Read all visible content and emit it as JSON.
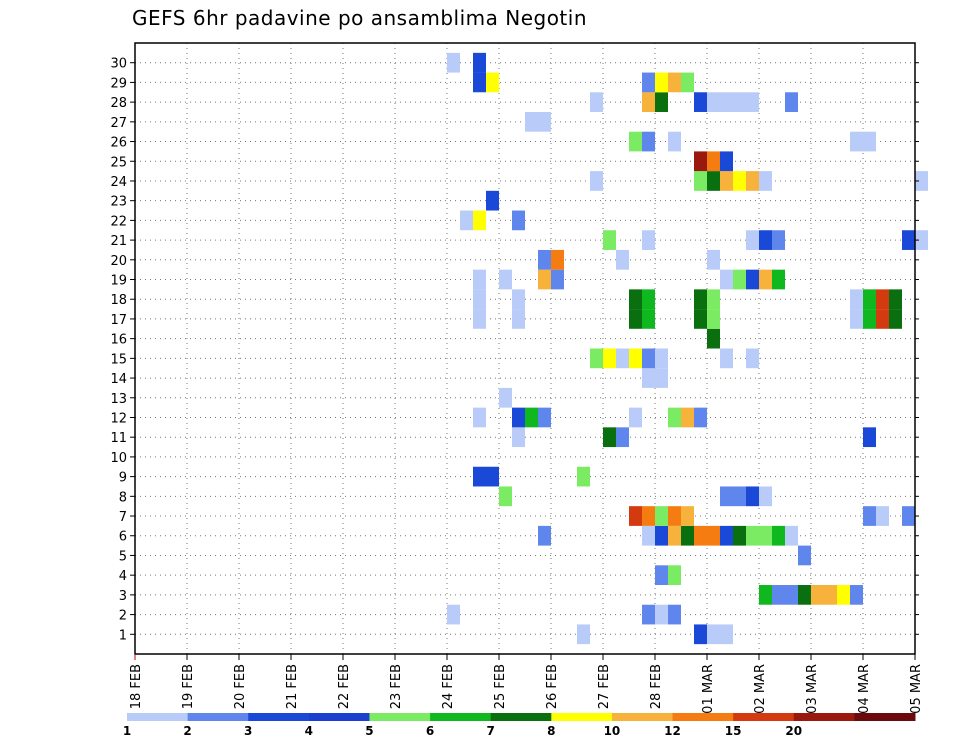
{
  "chart_data": {
    "type": "heatmap",
    "title": "GEFS 6hr padavine po ansamblima Negotin",
    "x_categories": [
      "18 FEB",
      "19 FEB",
      "20 FEB",
      "21 FEB",
      "22 FEB",
      "23 FEB",
      "24 FEB",
      "25 FEB",
      "26 FEB",
      "27 FEB",
      "28 FEB",
      "01 MAR",
      "02 MAR",
      "03 MAR",
      "04 MAR",
      "05 MAR"
    ],
    "x_range": [
      0,
      15
    ],
    "x_step": 0.25,
    "y_categories": [
      "1",
      "2",
      "3",
      "4",
      "5",
      "6",
      "7",
      "8",
      "9",
      "10",
      "11",
      "12",
      "13",
      "14",
      "15",
      "16",
      "17",
      "18",
      "19",
      "20",
      "21",
      "22",
      "23",
      "24",
      "25",
      "26",
      "27",
      "28",
      "29",
      "30"
    ],
    "grid": "dotted",
    "legend": {
      "position": "bottom",
      "levels": [
        "1",
        "2",
        "3",
        "4",
        "5",
        "6",
        "7",
        "8",
        "10",
        "12",
        "15",
        "20"
      ],
      "colors": [
        "#b9cbf9",
        "#5f86ec",
        "#1a49d8",
        "#1b3fcf",
        "#7beb63",
        "#10b820",
        "#0a6f0f",
        "#ffff00",
        "#f6b23a",
        "#f57c10",
        "#d43a10",
        "#99190c",
        "#6b0a0a"
      ]
    },
    "cells": [
      {
        "member": 1,
        "x": 10.75,
        "c": 3
      },
      {
        "member": 1,
        "x": 11.0,
        "c": 1
      },
      {
        "member": 1,
        "x": 11.25,
        "c": 1
      },
      {
        "member": 1,
        "x": 8.5,
        "c": 1
      },
      {
        "member": 2,
        "x": 6.0,
        "c": 1
      },
      {
        "member": 2,
        "x": 9.75,
        "c": 2
      },
      {
        "member": 2,
        "x": 10.0,
        "c": 1
      },
      {
        "member": 2,
        "x": 10.25,
        "c": 2
      },
      {
        "member": 3,
        "x": 12.0,
        "c": 6
      },
      {
        "member": 3,
        "x": 12.25,
        "c": 2
      },
      {
        "member": 3,
        "x": 12.5,
        "c": 2
      },
      {
        "member": 3,
        "x": 12.75,
        "c": 7
      },
      {
        "member": 3,
        "x": 13.0,
        "c": 9
      },
      {
        "member": 3,
        "x": 13.25,
        "c": 9
      },
      {
        "member": 3,
        "x": 13.5,
        "c": 8
      },
      {
        "member": 3,
        "x": 13.75,
        "c": 2
      },
      {
        "member": 4,
        "x": 10.0,
        "c": 2
      },
      {
        "member": 4,
        "x": 10.25,
        "c": 5
      },
      {
        "member": 5,
        "x": 12.75,
        "c": 2
      },
      {
        "member": 6,
        "x": 7.75,
        "c": 2
      },
      {
        "member": 6,
        "x": 9.75,
        "c": 1
      },
      {
        "member": 6,
        "x": 10.0,
        "c": 3
      },
      {
        "member": 6,
        "x": 10.25,
        "c": 9
      },
      {
        "member": 6,
        "x": 10.5,
        "c": 7
      },
      {
        "member": 6,
        "x": 10.75,
        "c": 10
      },
      {
        "member": 6,
        "x": 11.0,
        "c": 10
      },
      {
        "member": 6,
        "x": 11.25,
        "c": 3
      },
      {
        "member": 6,
        "x": 11.5,
        "c": 7
      },
      {
        "member": 6,
        "x": 11.75,
        "c": 5
      },
      {
        "member": 6,
        "x": 12.0,
        "c": 5
      },
      {
        "member": 6,
        "x": 12.25,
        "c": 6
      },
      {
        "member": 6,
        "x": 12.5,
        "c": 1
      },
      {
        "member": 7,
        "x": 9.5,
        "c": 11
      },
      {
        "member": 7,
        "x": 9.75,
        "c": 10
      },
      {
        "member": 7,
        "x": 10.0,
        "c": 5
      },
      {
        "member": 7,
        "x": 10.25,
        "c": 10
      },
      {
        "member": 7,
        "x": 10.5,
        "c": 9
      },
      {
        "member": 7,
        "x": 14.0,
        "c": 2
      },
      {
        "member": 7,
        "x": 14.25,
        "c": 1
      },
      {
        "member": 7,
        "x": 14.75,
        "c": 2
      },
      {
        "member": 8,
        "x": 7.0,
        "c": 5
      },
      {
        "member": 8,
        "x": 11.25,
        "c": 2
      },
      {
        "member": 8,
        "x": 11.5,
        "c": 2
      },
      {
        "member": 8,
        "x": 11.75,
        "c": 3
      },
      {
        "member": 8,
        "x": 12.0,
        "c": 1
      },
      {
        "member": 9,
        "x": 6.5,
        "c": 3
      },
      {
        "member": 9,
        "x": 6.75,
        "c": 3
      },
      {
        "member": 9,
        "x": 8.5,
        "c": 5
      },
      {
        "member": 11,
        "x": 7.25,
        "c": 1
      },
      {
        "member": 11,
        "x": 9.0,
        "c": 7
      },
      {
        "member": 11,
        "x": 9.25,
        "c": 2
      },
      {
        "member": 11,
        "x": 14.0,
        "c": 3
      },
      {
        "member": 12,
        "x": 6.5,
        "c": 1
      },
      {
        "member": 12,
        "x": 7.25,
        "c": 3
      },
      {
        "member": 12,
        "x": 7.5,
        "c": 6
      },
      {
        "member": 12,
        "x": 7.75,
        "c": 2
      },
      {
        "member": 12,
        "x": 9.5,
        "c": 1
      },
      {
        "member": 12,
        "x": 10.25,
        "c": 5
      },
      {
        "member": 12,
        "x": 10.5,
        "c": 9
      },
      {
        "member": 12,
        "x": 10.75,
        "c": 2
      },
      {
        "member": 13,
        "x": 7.0,
        "c": 1
      },
      {
        "member": 14,
        "x": 9.75,
        "c": 1
      },
      {
        "member": 14,
        "x": 10.0,
        "c": 1
      },
      {
        "member": 15,
        "x": 8.75,
        "c": 5
      },
      {
        "member": 15,
        "x": 9.0,
        "c": 8
      },
      {
        "member": 15,
        "x": 9.25,
        "c": 1
      },
      {
        "member": 15,
        "x": 9.5,
        "c": 8
      },
      {
        "member": 15,
        "x": 9.75,
        "c": 2
      },
      {
        "member": 15,
        "x": 10.0,
        "c": 1
      },
      {
        "member": 15,
        "x": 11.25,
        "c": 1
      },
      {
        "member": 15,
        "x": 11.75,
        "c": 1
      },
      {
        "member": 16,
        "x": 11.0,
        "c": 7
      },
      {
        "member": 17,
        "x": 6.5,
        "c": 1
      },
      {
        "member": 17,
        "x": 7.25,
        "c": 1
      },
      {
        "member": 17,
        "x": 9.5,
        "c": 7
      },
      {
        "member": 17,
        "x": 9.75,
        "c": 6
      },
      {
        "member": 17,
        "x": 10.75,
        "c": 7
      },
      {
        "member": 17,
        "x": 11.0,
        "c": 5
      },
      {
        "member": 17,
        "x": 13.75,
        "c": 1
      },
      {
        "member": 17,
        "x": 14.0,
        "c": 6
      },
      {
        "member": 17,
        "x": 14.25,
        "c": 11
      },
      {
        "member": 17,
        "x": 14.5,
        "c": 7
      },
      {
        "member": 18,
        "x": 6.5,
        "c": 1
      },
      {
        "member": 18,
        "x": 7.25,
        "c": 1
      },
      {
        "member": 18,
        "x": 9.5,
        "c": 7
      },
      {
        "member": 18,
        "x": 9.75,
        "c": 6
      },
      {
        "member": 18,
        "x": 10.75,
        "c": 7
      },
      {
        "member": 18,
        "x": 11.0,
        "c": 5
      },
      {
        "member": 18,
        "x": 13.75,
        "c": 1
      },
      {
        "member": 18,
        "x": 14.0,
        "c": 6
      },
      {
        "member": 18,
        "x": 14.25,
        "c": 11
      },
      {
        "member": 18,
        "x": 14.5,
        "c": 7
      },
      {
        "member": 19,
        "x": 6.5,
        "c": 1
      },
      {
        "member": 19,
        "x": 7.0,
        "c": 1
      },
      {
        "member": 19,
        "x": 7.75,
        "c": 9
      },
      {
        "member": 19,
        "x": 8.0,
        "c": 2
      },
      {
        "member": 19,
        "x": 11.25,
        "c": 1
      },
      {
        "member": 19,
        "x": 11.5,
        "c": 5
      },
      {
        "member": 19,
        "x": 11.75,
        "c": 3
      },
      {
        "member": 19,
        "x": 12.0,
        "c": 9
      },
      {
        "member": 19,
        "x": 12.25,
        "c": 6
      },
      {
        "member": 20,
        "x": 7.75,
        "c": 2
      },
      {
        "member": 20,
        "x": 8.0,
        "c": 10
      },
      {
        "member": 20,
        "x": 9.25,
        "c": 1
      },
      {
        "member": 20,
        "x": 11.0,
        "c": 1
      },
      {
        "member": 21,
        "x": 9.0,
        "c": 5
      },
      {
        "member": 21,
        "x": 9.75,
        "c": 1
      },
      {
        "member": 21,
        "x": 11.75,
        "c": 1
      },
      {
        "member": 21,
        "x": 12.0,
        "c": 3
      },
      {
        "member": 21,
        "x": 12.25,
        "c": 2
      },
      {
        "member": 21,
        "x": 14.75,
        "c": 3
      },
      {
        "member": 21,
        "x": 15.0,
        "c": 1
      },
      {
        "member": 22,
        "x": 6.25,
        "c": 1
      },
      {
        "member": 22,
        "x": 6.5,
        "c": 8
      },
      {
        "member": 22,
        "x": 7.25,
        "c": 2
      },
      {
        "member": 23,
        "x": 6.75,
        "c": 3
      },
      {
        "member": 24,
        "x": 8.75,
        "c": 1
      },
      {
        "member": 24,
        "x": 10.75,
        "c": 5
      },
      {
        "member": 24,
        "x": 11.0,
        "c": 7
      },
      {
        "member": 24,
        "x": 11.25,
        "c": 9
      },
      {
        "member": 24,
        "x": 11.5,
        "c": 8
      },
      {
        "member": 24,
        "x": 11.75,
        "c": 9
      },
      {
        "member": 24,
        "x": 12.0,
        "c": 1
      },
      {
        "member": 24,
        "x": 15.0,
        "c": 1
      },
      {
        "member": 25,
        "x": 10.75,
        "c": 12
      },
      {
        "member": 25,
        "x": 11.0,
        "c": 10
      },
      {
        "member": 25,
        "x": 11.25,
        "c": 3
      },
      {
        "member": 26,
        "x": 9.5,
        "c": 5
      },
      {
        "member": 26,
        "x": 9.75,
        "c": 2
      },
      {
        "member": 26,
        "x": 10.25,
        "c": 1
      },
      {
        "member": 26,
        "x": 13.75,
        "c": 1
      },
      {
        "member": 26,
        "x": 14.0,
        "c": 1
      },
      {
        "member": 27,
        "x": 7.5,
        "c": 1
      },
      {
        "member": 27,
        "x": 7.75,
        "c": 1
      },
      {
        "member": 28,
        "x": 8.75,
        "c": 1
      },
      {
        "member": 28,
        "x": 9.75,
        "c": 9
      },
      {
        "member": 28,
        "x": 10.0,
        "c": 7
      },
      {
        "member": 28,
        "x": 10.75,
        "c": 3
      },
      {
        "member": 28,
        "x": 11.0,
        "c": 1
      },
      {
        "member": 28,
        "x": 11.25,
        "c": 1
      },
      {
        "member": 28,
        "x": 11.5,
        "c": 1
      },
      {
        "member": 28,
        "x": 11.75,
        "c": 1
      },
      {
        "member": 28,
        "x": 12.5,
        "c": 2
      },
      {
        "member": 29,
        "x": 6.5,
        "c": 3
      },
      {
        "member": 29,
        "x": 6.75,
        "c": 8
      },
      {
        "member": 29,
        "x": 9.75,
        "c": 2
      },
      {
        "member": 29,
        "x": 10.0,
        "c": 8
      },
      {
        "member": 29,
        "x": 10.25,
        "c": 9
      },
      {
        "member": 29,
        "x": 10.5,
        "c": 5
      },
      {
        "member": 30,
        "x": 6.0,
        "c": 1
      },
      {
        "member": 30,
        "x": 6.5,
        "c": 3
      }
    ]
  }
}
